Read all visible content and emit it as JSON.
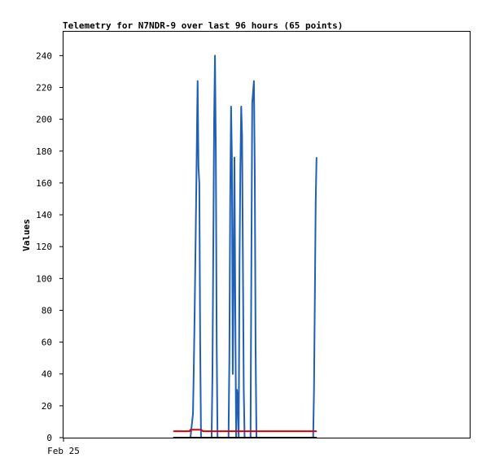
{
  "chart_data": {
    "type": "line",
    "title": "Telemetry for N7NDR-9 over last 96 hours (65 points)",
    "xlabel": "",
    "ylabel": "Values",
    "x_tick_labels": [
      {
        "label": "Feb 25",
        "hour": 0
      }
    ],
    "xlim": [
      0,
      96
    ],
    "ylim": [
      0,
      255
    ],
    "y_ticks": [
      0,
      20,
      40,
      60,
      80,
      100,
      120,
      140,
      160,
      180,
      200,
      220,
      240
    ],
    "grid": false,
    "series": [
      {
        "color": "#1f5fb4",
        "points": [
          [
            30.0,
            0
          ],
          [
            30.6,
            15
          ],
          [
            30.8,
            45
          ],
          [
            31.0,
            80
          ],
          [
            31.2,
            120
          ],
          [
            31.4,
            160
          ],
          [
            31.6,
            205
          ],
          [
            31.7,
            224
          ],
          [
            31.9,
            170
          ],
          [
            32.1,
            160
          ],
          [
            32.3,
            60
          ],
          [
            32.5,
            0
          ],
          [
            35.0,
            0
          ],
          [
            35.2,
            40
          ],
          [
            35.4,
            120
          ],
          [
            35.6,
            200
          ],
          [
            35.8,
            240
          ],
          [
            36.0,
            180
          ],
          [
            36.2,
            60
          ],
          [
            36.4,
            0
          ],
          [
            39.0,
            0
          ],
          [
            39.2,
            50
          ],
          [
            39.4,
            150
          ],
          [
            39.6,
            208
          ],
          [
            39.8,
            175
          ],
          [
            40.0,
            40
          ],
          [
            40.2,
            100
          ],
          [
            40.4,
            176
          ],
          [
            40.6,
            80
          ],
          [
            40.8,
            0
          ],
          [
            41.0,
            30
          ],
          [
            41.2,
            25
          ],
          [
            41.4,
            0
          ],
          [
            41.6,
            110
          ],
          [
            41.8,
            170
          ],
          [
            42.0,
            208
          ],
          [
            42.2,
            190
          ],
          [
            42.4,
            110
          ],
          [
            42.6,
            30
          ],
          [
            42.8,
            0
          ],
          [
            44.2,
            0
          ],
          [
            44.4,
            110
          ],
          [
            44.6,
            210
          ],
          [
            44.8,
            217
          ],
          [
            45.0,
            224
          ],
          [
            45.2,
            168
          ],
          [
            45.4,
            55
          ],
          [
            45.6,
            0
          ],
          [
            59.0,
            0
          ],
          [
            59.2,
            30
          ],
          [
            59.4,
            88
          ],
          [
            59.6,
            148
          ],
          [
            59.8,
            176
          ]
        ]
      },
      {
        "color": "#dd0000",
        "points": [
          [
            26.0,
            4
          ],
          [
            29.8,
            4
          ],
          [
            30.0,
            5
          ],
          [
            32.5,
            5
          ],
          [
            33.0,
            4
          ],
          [
            59.8,
            4
          ]
        ]
      },
      {
        "color": "#000000",
        "points": [
          [
            26.0,
            0
          ],
          [
            59.8,
            0
          ]
        ]
      }
    ]
  }
}
